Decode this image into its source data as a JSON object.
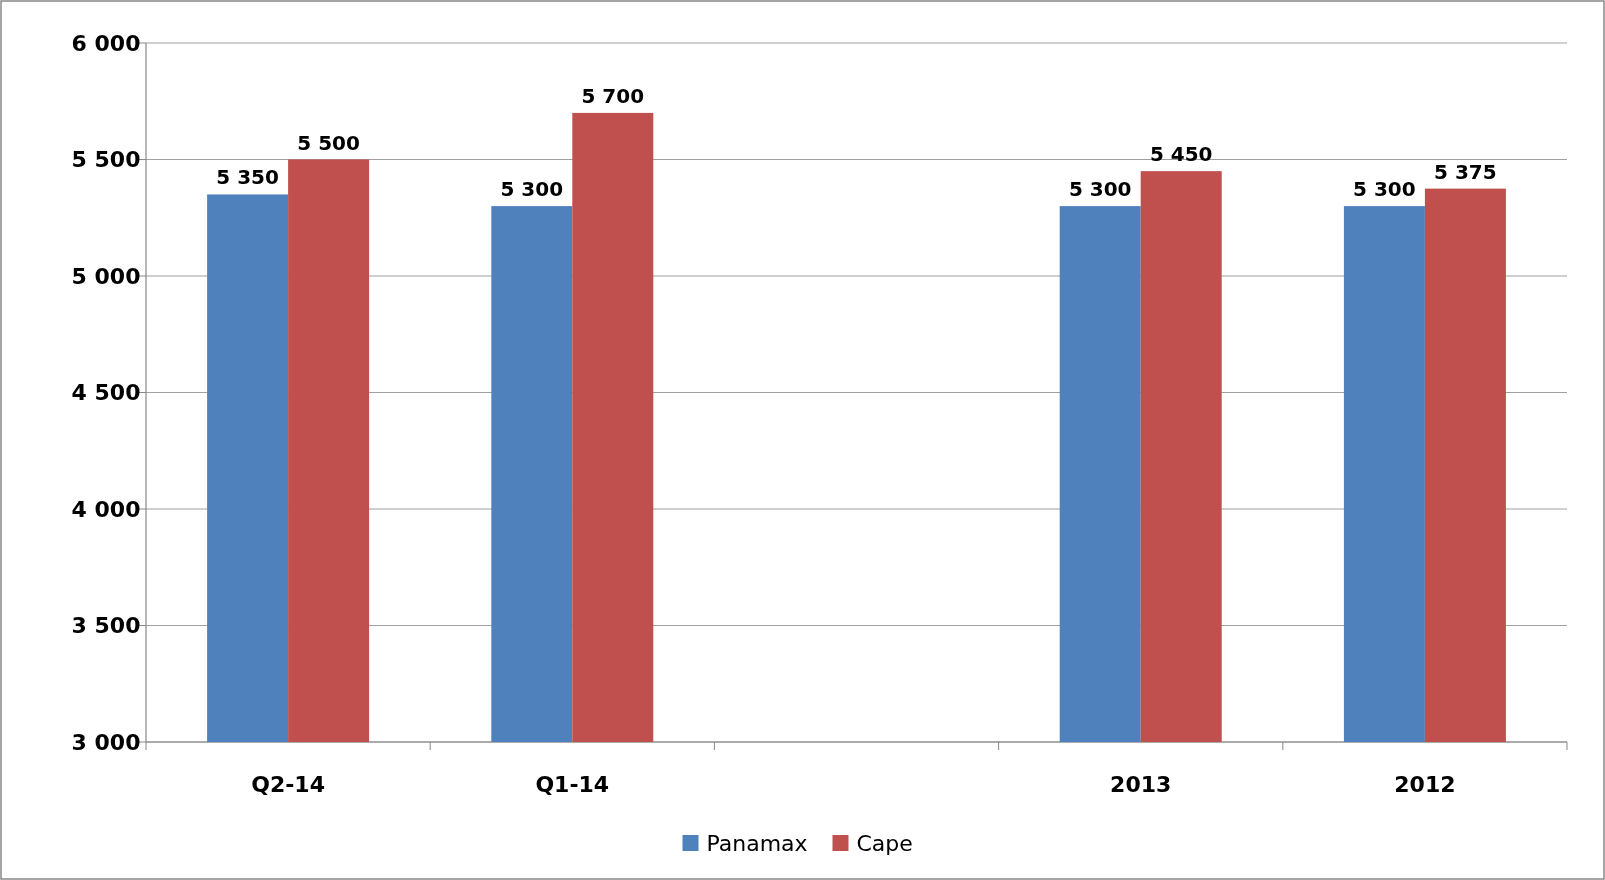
{
  "chart_data": {
    "type": "bar",
    "categories": [
      "Q2-14",
      "Q1-14",
      null,
      "2013",
      "2012"
    ],
    "series": [
      {
        "name": "Panamax",
        "color": "#4f81bd",
        "values": [
          5350,
          5300,
          null,
          5300,
          5300
        ],
        "value_labels": [
          "5 350",
          "5 300",
          null,
          "5 300",
          "5 300"
        ]
      },
      {
        "name": "Cape",
        "color": "#c0504d",
        "values": [
          5500,
          5700,
          null,
          5450,
          5375
        ],
        "value_labels": [
          "5 500",
          "5 700",
          null,
          "5 450",
          "5 375"
        ]
      }
    ],
    "ylim": [
      3000,
      6000
    ],
    "yticks": [
      {
        "value": 3000,
        "label": "3 000"
      },
      {
        "value": 3500,
        "label": "3 500"
      },
      {
        "value": 4000,
        "label": "4 000"
      },
      {
        "value": 4500,
        "label": "4 500"
      },
      {
        "value": 5000,
        "label": "5 000"
      },
      {
        "value": 5500,
        "label": "5 500"
      },
      {
        "value": 6000,
        "label": "6 000"
      }
    ],
    "grid": "y",
    "legend": "bottom"
  }
}
